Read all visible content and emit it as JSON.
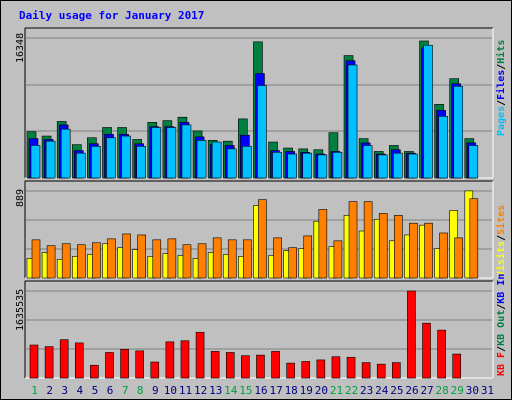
{
  "title": "Daily usage for January 2017",
  "colors": {
    "pages": "#00c0ff",
    "files": "#0000ff",
    "hits": "#008040",
    "visits": "#ffff00",
    "sites": "#ff8000",
    "kb_in": "#0000ff",
    "kb_out": "#008040",
    "kbytes": "#ff0000",
    "panel_bg": "#c0c0c0",
    "day_label": "#000080",
    "weekend_label": "#00a040"
  },
  "panels": [
    {
      "ymax_label": "16348",
      "legend": [
        {
          "text": "Pages",
          "color": "#00c0ff"
        },
        {
          "sep": "/"
        },
        {
          "text": "Files",
          "color": "#0000ff"
        },
        {
          "sep": "/"
        },
        {
          "text": "Hits",
          "color": "#008040"
        }
      ]
    },
    {
      "ymax_label": "889",
      "legend": [
        {
          "text": "Visits",
          "color": "#ffff00"
        },
        {
          "sep": "/"
        },
        {
          "text": "Sites",
          "color": "#ff8000"
        }
      ]
    },
    {
      "ymax_label": "1635535",
      "legend": [
        {
          "text": "KB In",
          "color": "#0000ff"
        },
        {
          "sep": "/"
        },
        {
          "text": "KB Out",
          "color": "#008040"
        },
        {
          "sep": "/"
        },
        {
          "text": "KB F",
          "color": "#ff0000"
        }
      ]
    }
  ],
  "chart_data": {
    "type": "bar",
    "title": "Daily usage for January 2017",
    "categories": [
      "1",
      "2",
      "3",
      "4",
      "5",
      "6",
      "7",
      "8",
      "9",
      "10",
      "11",
      "12",
      "13",
      "14",
      "15",
      "16",
      "17",
      "18",
      "19",
      "20",
      "21",
      "22",
      "23",
      "24",
      "25",
      "26",
      "27",
      "28",
      "29",
      "30",
      "31"
    ],
    "weekend_days": [
      "1",
      "7",
      "8",
      "14",
      "15",
      "21",
      "22",
      "28",
      "29"
    ],
    "hits_panel": {
      "ymax": 16348,
      "series": [
        {
          "name": "Hits",
          "values": [
            5400,
            4900,
            6600,
            3900,
            4700,
            5900,
            5900,
            4500,
            6500,
            6700,
            7100,
            5500,
            4400,
            4300,
            6900,
            15900,
            4200,
            3500,
            3400,
            3300,
            5300,
            14300,
            4600,
            3100,
            3800,
            3100,
            16000,
            8600,
            11600,
            4600,
            0
          ]
        },
        {
          "name": "Files",
          "values": [
            4600,
            4500,
            6200,
            3200,
            4000,
            5100,
            5100,
            4000,
            6000,
            6000,
            6500,
            4800,
            3900,
            3800,
            5000,
            12200,
            3200,
            3100,
            3000,
            2800,
            3100,
            13700,
            4100,
            2800,
            3300,
            2900,
            15200,
            7900,
            11000,
            4100,
            0
          ]
        },
        {
          "name": "Pages",
          "values": [
            3800,
            4300,
            5700,
            2900,
            3700,
            4700,
            4900,
            3700,
            5900,
            5900,
            6200,
            4400,
            4200,
            3400,
            3700,
            10800,
            3000,
            2800,
            2900,
            2700,
            3000,
            13200,
            3800,
            2700,
            2900,
            2800,
            15500,
            7200,
            10700,
            3800,
            0
          ]
        }
      ]
    },
    "visits_panel": {
      "ymax": 889,
      "series": [
        {
          "name": "Visits",
          "values": [
            200,
            260,
            190,
            220,
            240,
            350,
            310,
            290,
            220,
            250,
            230,
            200,
            260,
            240,
            220,
            740,
            230,
            280,
            300,
            580,
            320,
            640,
            480,
            600,
            380,
            440,
            540,
            300,
            690,
            890,
            0
          ]
        },
        {
          "name": "Sites",
          "values": [
            390,
            330,
            350,
            340,
            360,
            400,
            450,
            440,
            390,
            400,
            340,
            350,
            410,
            390,
            390,
            800,
            410,
            310,
            430,
            700,
            380,
            780,
            780,
            660,
            640,
            560,
            560,
            460,
            410,
            810,
            0
          ]
        }
      ]
    },
    "kbytes_panel": {
      "ymax": 1635535,
      "series": [
        {
          "name": "KB F",
          "values": [
            620000,
            590000,
            720000,
            660000,
            240000,
            480000,
            540000,
            510000,
            300000,
            680000,
            700000,
            860000,
            500000,
            480000,
            420000,
            430000,
            500000,
            280000,
            310000,
            340000,
            400000,
            390000,
            290000,
            260000,
            290000,
            1635535,
            1030000,
            900000,
            450000,
            0,
            0
          ]
        }
      ]
    }
  }
}
